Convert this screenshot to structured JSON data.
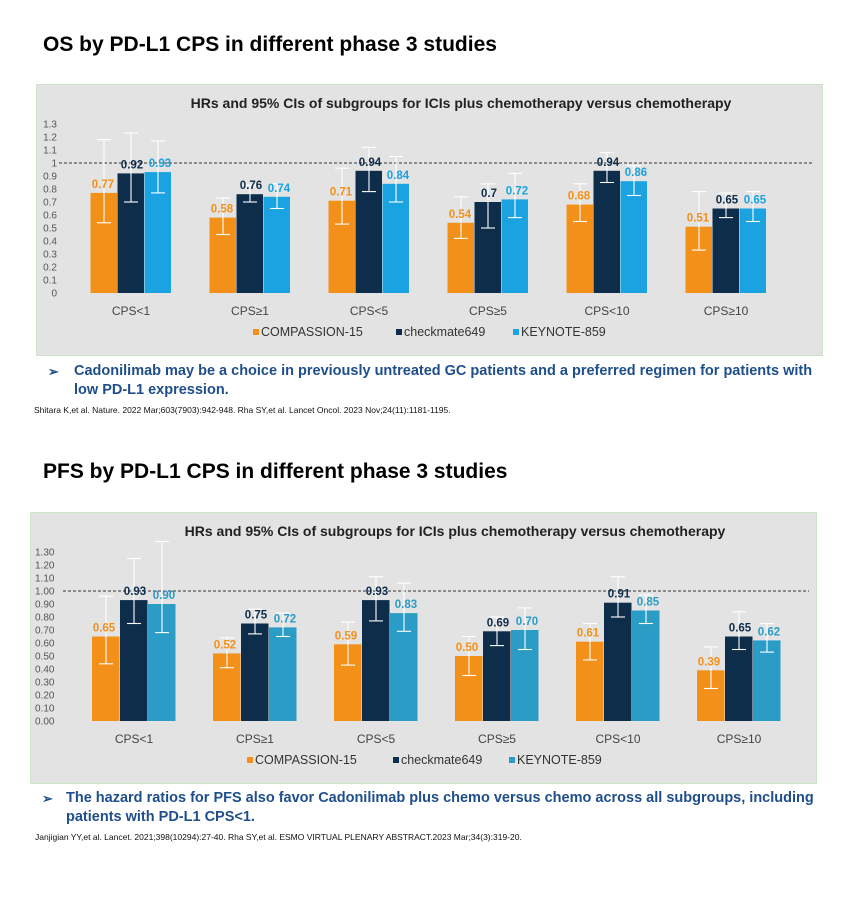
{
  "os_section": {
    "title": "OS by PD-L1 CPS in different phase 3 studies",
    "conclusion": "Cadonilimab may be a choice in previously untreated GC patients and a preferred regimen for patients with low PD-L1 expression.",
    "reference": "Shitara K,et al. Nature. 2022 Mar;603(7903):942-948.   Rha SY,et al. Lancet Oncol. 2023 Nov;24(11):1181-1195."
  },
  "pfs_section": {
    "title": "PFS by PD-L1 CPS in different phase 3 studies",
    "conclusion": "The hazard ratios for PFS also favor Cadonilimab plus chemo versus chemo across all subgroups, including patients with PD-L1 CPS<1.",
    "reference": "Janjigian YY,et al. Lancet. 2021;398(10294):27-40.   Rha SY,et al. ESMO VIRTUAL PLENARY ABSTRACT.2023 Mar;34(3):319-20."
  },
  "colors": {
    "compassion": "#f39019",
    "checkmate": "#0d2d4a",
    "keynote_os": "#1aa3e0",
    "keynote_pfs": "#2a9cc6"
  },
  "chart_data": [
    {
      "type": "bar",
      "title": "HRs and 95% CIs of subgroups for ICIs plus chemotherapy versus chemotherapy",
      "categories": [
        "CPS<1",
        "CPS≥1",
        "CPS<5",
        "CPS≥5",
        "CPS<10",
        "CPS≥10"
      ],
      "yticks": [
        "0",
        "0.1",
        "0.2",
        "0.3",
        "0.4",
        "0.5",
        "0.6",
        "0.7",
        "0.8",
        "0.9",
        "1",
        "1.1",
        "1.2",
        "1.3"
      ],
      "ylim": [
        0,
        1.3
      ],
      "reference_line": 1,
      "legend_position": "bottom",
      "series": [
        {
          "name": "COMPASSION-15",
          "values": [
            0.77,
            0.58,
            0.71,
            0.54,
            0.68,
            0.51
          ],
          "labels": [
            "0.77",
            "0.58",
            "0.71",
            "0.54",
            "0.68",
            "0.51"
          ],
          "ci_low": [
            0.54,
            0.45,
            0.53,
            0.42,
            0.55,
            0.33
          ],
          "ci_high": [
            1.18,
            0.73,
            0.96,
            0.74,
            0.84,
            0.78
          ]
        },
        {
          "name": "checkmate649",
          "values": [
            0.92,
            0.76,
            0.94,
            0.7,
            0.94,
            0.65
          ],
          "labels": [
            "0.92",
            "0.76",
            "0.94",
            "0.7",
            "0.94",
            "0.65"
          ],
          "ci_low": [
            0.7,
            0.7,
            0.78,
            0.5,
            0.85,
            0.58
          ],
          "ci_high": [
            1.23,
            0.83,
            1.12,
            0.84,
            1.08,
            0.77
          ]
        },
        {
          "name": "KEYNOTE-859",
          "values": [
            0.93,
            0.74,
            0.84,
            0.72,
            0.86,
            0.65
          ],
          "labels": [
            "0.93",
            "0.74",
            "0.84",
            "0.72",
            "0.86",
            "0.65"
          ],
          "ci_low": [
            0.77,
            0.65,
            0.7,
            0.58,
            0.75,
            0.55
          ],
          "ci_high": [
            1.17,
            0.84,
            1.05,
            0.92,
            0.98,
            0.78
          ]
        }
      ]
    },
    {
      "type": "bar",
      "title": "HRs and 95% CIs of subgroups for ICIs plus chemotherapy versus chemotherapy",
      "categories": [
        "CPS<1",
        "CPS≥1",
        "CPS<5",
        "CPS≥5",
        "CPS<10",
        "CPS≥10"
      ],
      "yticks": [
        "0.00",
        "0.10",
        "0.20",
        "0.30",
        "0.40",
        "0.50",
        "0.60",
        "0.70",
        "0.80",
        "0.90",
        "1.00",
        "1.10",
        "1.20",
        "1.30"
      ],
      "ylim": [
        0,
        1.3
      ],
      "reference_line": 1,
      "legend_position": "bottom",
      "series": [
        {
          "name": "COMPASSION-15",
          "values": [
            0.65,
            0.52,
            0.59,
            0.5,
            0.61,
            0.39
          ],
          "labels": [
            "0.65",
            "0.52",
            "0.59",
            "0.50",
            "0.61",
            "0.39"
          ],
          "ci_low": [
            0.44,
            0.41,
            0.43,
            0.35,
            0.47,
            0.25
          ],
          "ci_high": [
            0.96,
            0.64,
            0.76,
            0.65,
            0.75,
            0.57
          ]
        },
        {
          "name": "checkmate649",
          "values": [
            0.93,
            0.75,
            0.93,
            0.69,
            0.91,
            0.65
          ],
          "labels": [
            "0.93",
            "0.75",
            "0.93",
            "0.69",
            "0.91",
            "0.65"
          ],
          "ci_low": [
            0.75,
            0.67,
            0.77,
            0.58,
            0.8,
            0.55
          ],
          "ci_high": [
            1.25,
            0.86,
            1.11,
            0.8,
            1.11,
            0.84
          ]
        },
        {
          "name": "KEYNOTE-859",
          "values": [
            0.9,
            0.72,
            0.83,
            0.7,
            0.85,
            0.62
          ],
          "labels": [
            "0.90",
            "0.72",
            "0.83",
            "0.70",
            "0.85",
            "0.62"
          ],
          "ci_low": [
            0.68,
            0.65,
            0.69,
            0.55,
            0.75,
            0.53
          ],
          "ci_high": [
            1.38,
            0.83,
            1.06,
            0.87,
            0.97,
            0.75
          ]
        }
      ]
    }
  ]
}
